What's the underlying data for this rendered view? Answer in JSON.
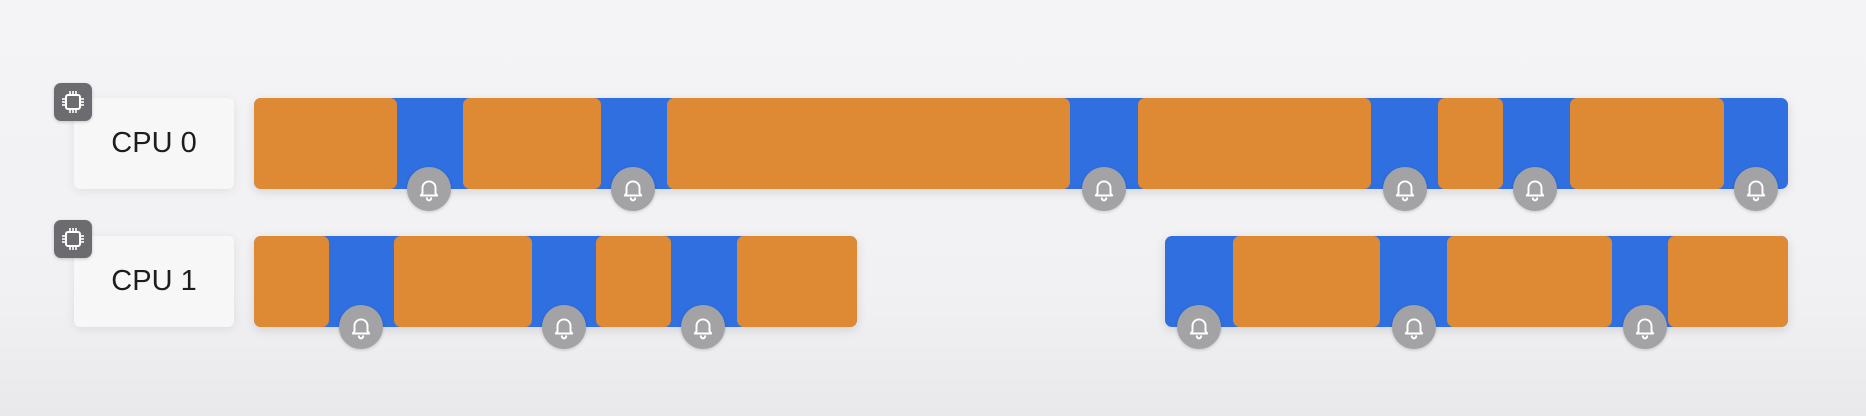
{
  "diagram": {
    "colors": {
      "idle_blue": "#2f6fe0",
      "task_orange": "#de8934",
      "bell_gray": "#a3a3a6",
      "chip_gray": "#6b6b70"
    },
    "cpus": [
      {
        "label": "CPU 0",
        "icon": "cpu-chip-icon",
        "segments": [
          {
            "start": 0,
            "end": 100,
            "tasks": [
              {
                "start": 0.0,
                "end": 9.3
              },
              {
                "start": 13.6,
                "end": 22.6
              },
              {
                "start": 26.9,
                "end": 53.2
              },
              {
                "start": 57.6,
                "end": 72.8
              },
              {
                "start": 77.2,
                "end": 81.4
              },
              {
                "start": 85.8,
                "end": 95.8
              }
            ],
            "alerts": [
              11.4,
              24.7,
              55.4,
              75.0,
              83.5,
              97.9
            ]
          }
        ]
      },
      {
        "label": "CPU 1",
        "icon": "cpu-chip-icon",
        "segments": [
          {
            "start": 0,
            "end": 39.3,
            "tasks": [
              {
                "start": 0.0,
                "end": 4.9
              },
              {
                "start": 9.1,
                "end": 18.1
              },
              {
                "start": 22.3,
                "end": 27.2
              },
              {
                "start": 31.5,
                "end": 39.3
              }
            ],
            "alerts": [
              7.0,
              20.2,
              29.3
            ]
          },
          {
            "start": 59.4,
            "end": 100,
            "tasks": [
              {
                "start": 63.8,
                "end": 73.4
              },
              {
                "start": 77.8,
                "end": 88.5
              },
              {
                "start": 92.2,
                "end": 100
              }
            ],
            "alerts": [
              61.6,
              75.6,
              90.7
            ]
          }
        ]
      }
    ]
  }
}
